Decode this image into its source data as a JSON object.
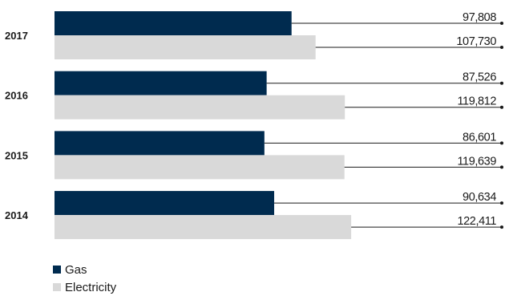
{
  "chart_data": {
    "type": "bar",
    "orientation": "horizontal",
    "categories": [
      "2017",
      "2016",
      "2015",
      "2014"
    ],
    "series": [
      {
        "name": "Gas",
        "color": "#002b4f",
        "values": [
          97808,
          87526,
          86601,
          90634
        ],
        "labels": [
          "97,808",
          "87,526",
          "86,601",
          "90,634"
        ]
      },
      {
        "name": "Electricity",
        "color": "#d9d9d9",
        "values": [
          107730,
          119812,
          119639,
          122411
        ],
        "labels": [
          "107,730",
          "119,812",
          "119,639",
          "122,411"
        ]
      }
    ],
    "title": "",
    "xlabel": "",
    "ylabel": "",
    "grid": false,
    "legend_position": "bottom-left"
  }
}
